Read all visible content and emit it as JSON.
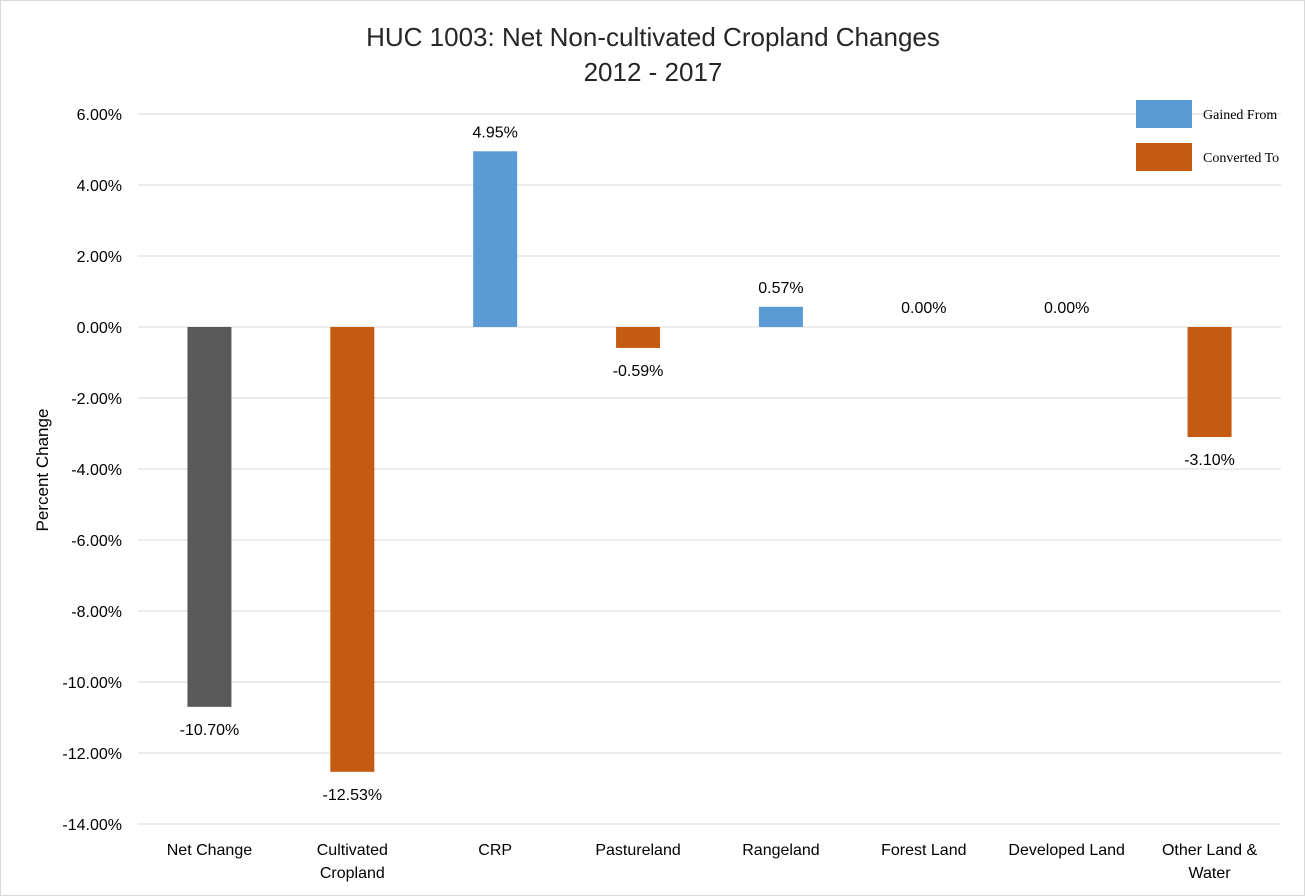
{
  "chart_data": {
    "type": "bar",
    "title_lines": [
      "HUC 1003: Net Non-cultivated Cropland Changes",
      "2012 - 2017"
    ],
    "xlabel": "",
    "ylabel": "Percent Change",
    "ylim": [
      -14,
      6
    ],
    "ytick_step": 2,
    "ytick_labels": [
      "6.00%",
      "4.00%",
      "2.00%",
      "0.00%",
      "-2.00%",
      "-4.00%",
      "-6.00%",
      "-8.00%",
      "-10.00%",
      "-12.00%",
      "-14.00%"
    ],
    "grid": true,
    "legend_position": "top-right",
    "categories": [
      [
        "Net Change"
      ],
      [
        "Cultivated",
        "Cropland"
      ],
      [
        "CRP"
      ],
      [
        "Pastureland"
      ],
      [
        "Rangeland"
      ],
      [
        "Forest Land"
      ],
      [
        "Developed Land"
      ],
      [
        "Other Land &",
        "Water"
      ]
    ],
    "values": [
      -10.7,
      -12.53,
      4.95,
      -0.59,
      0.57,
      0.0,
      0.0,
      -3.1
    ],
    "data_labels": [
      "-10.70%",
      "-12.53%",
      "4.95%",
      "-0.59%",
      "0.57%",
      "0.00%",
      "0.00%",
      "-3.10%"
    ],
    "bar_kinds": [
      "net",
      "converted",
      "gained",
      "converted",
      "gained",
      "gained",
      "gained",
      "converted"
    ],
    "legend": [
      {
        "name": "Gained From",
        "kind": "gained"
      },
      {
        "name": "Converted To",
        "kind": "converted"
      }
    ],
    "colors": {
      "net": "#595959",
      "gained": "#5b9bd5",
      "converted": "#c55a11",
      "grid": "#d9d9d9"
    }
  }
}
